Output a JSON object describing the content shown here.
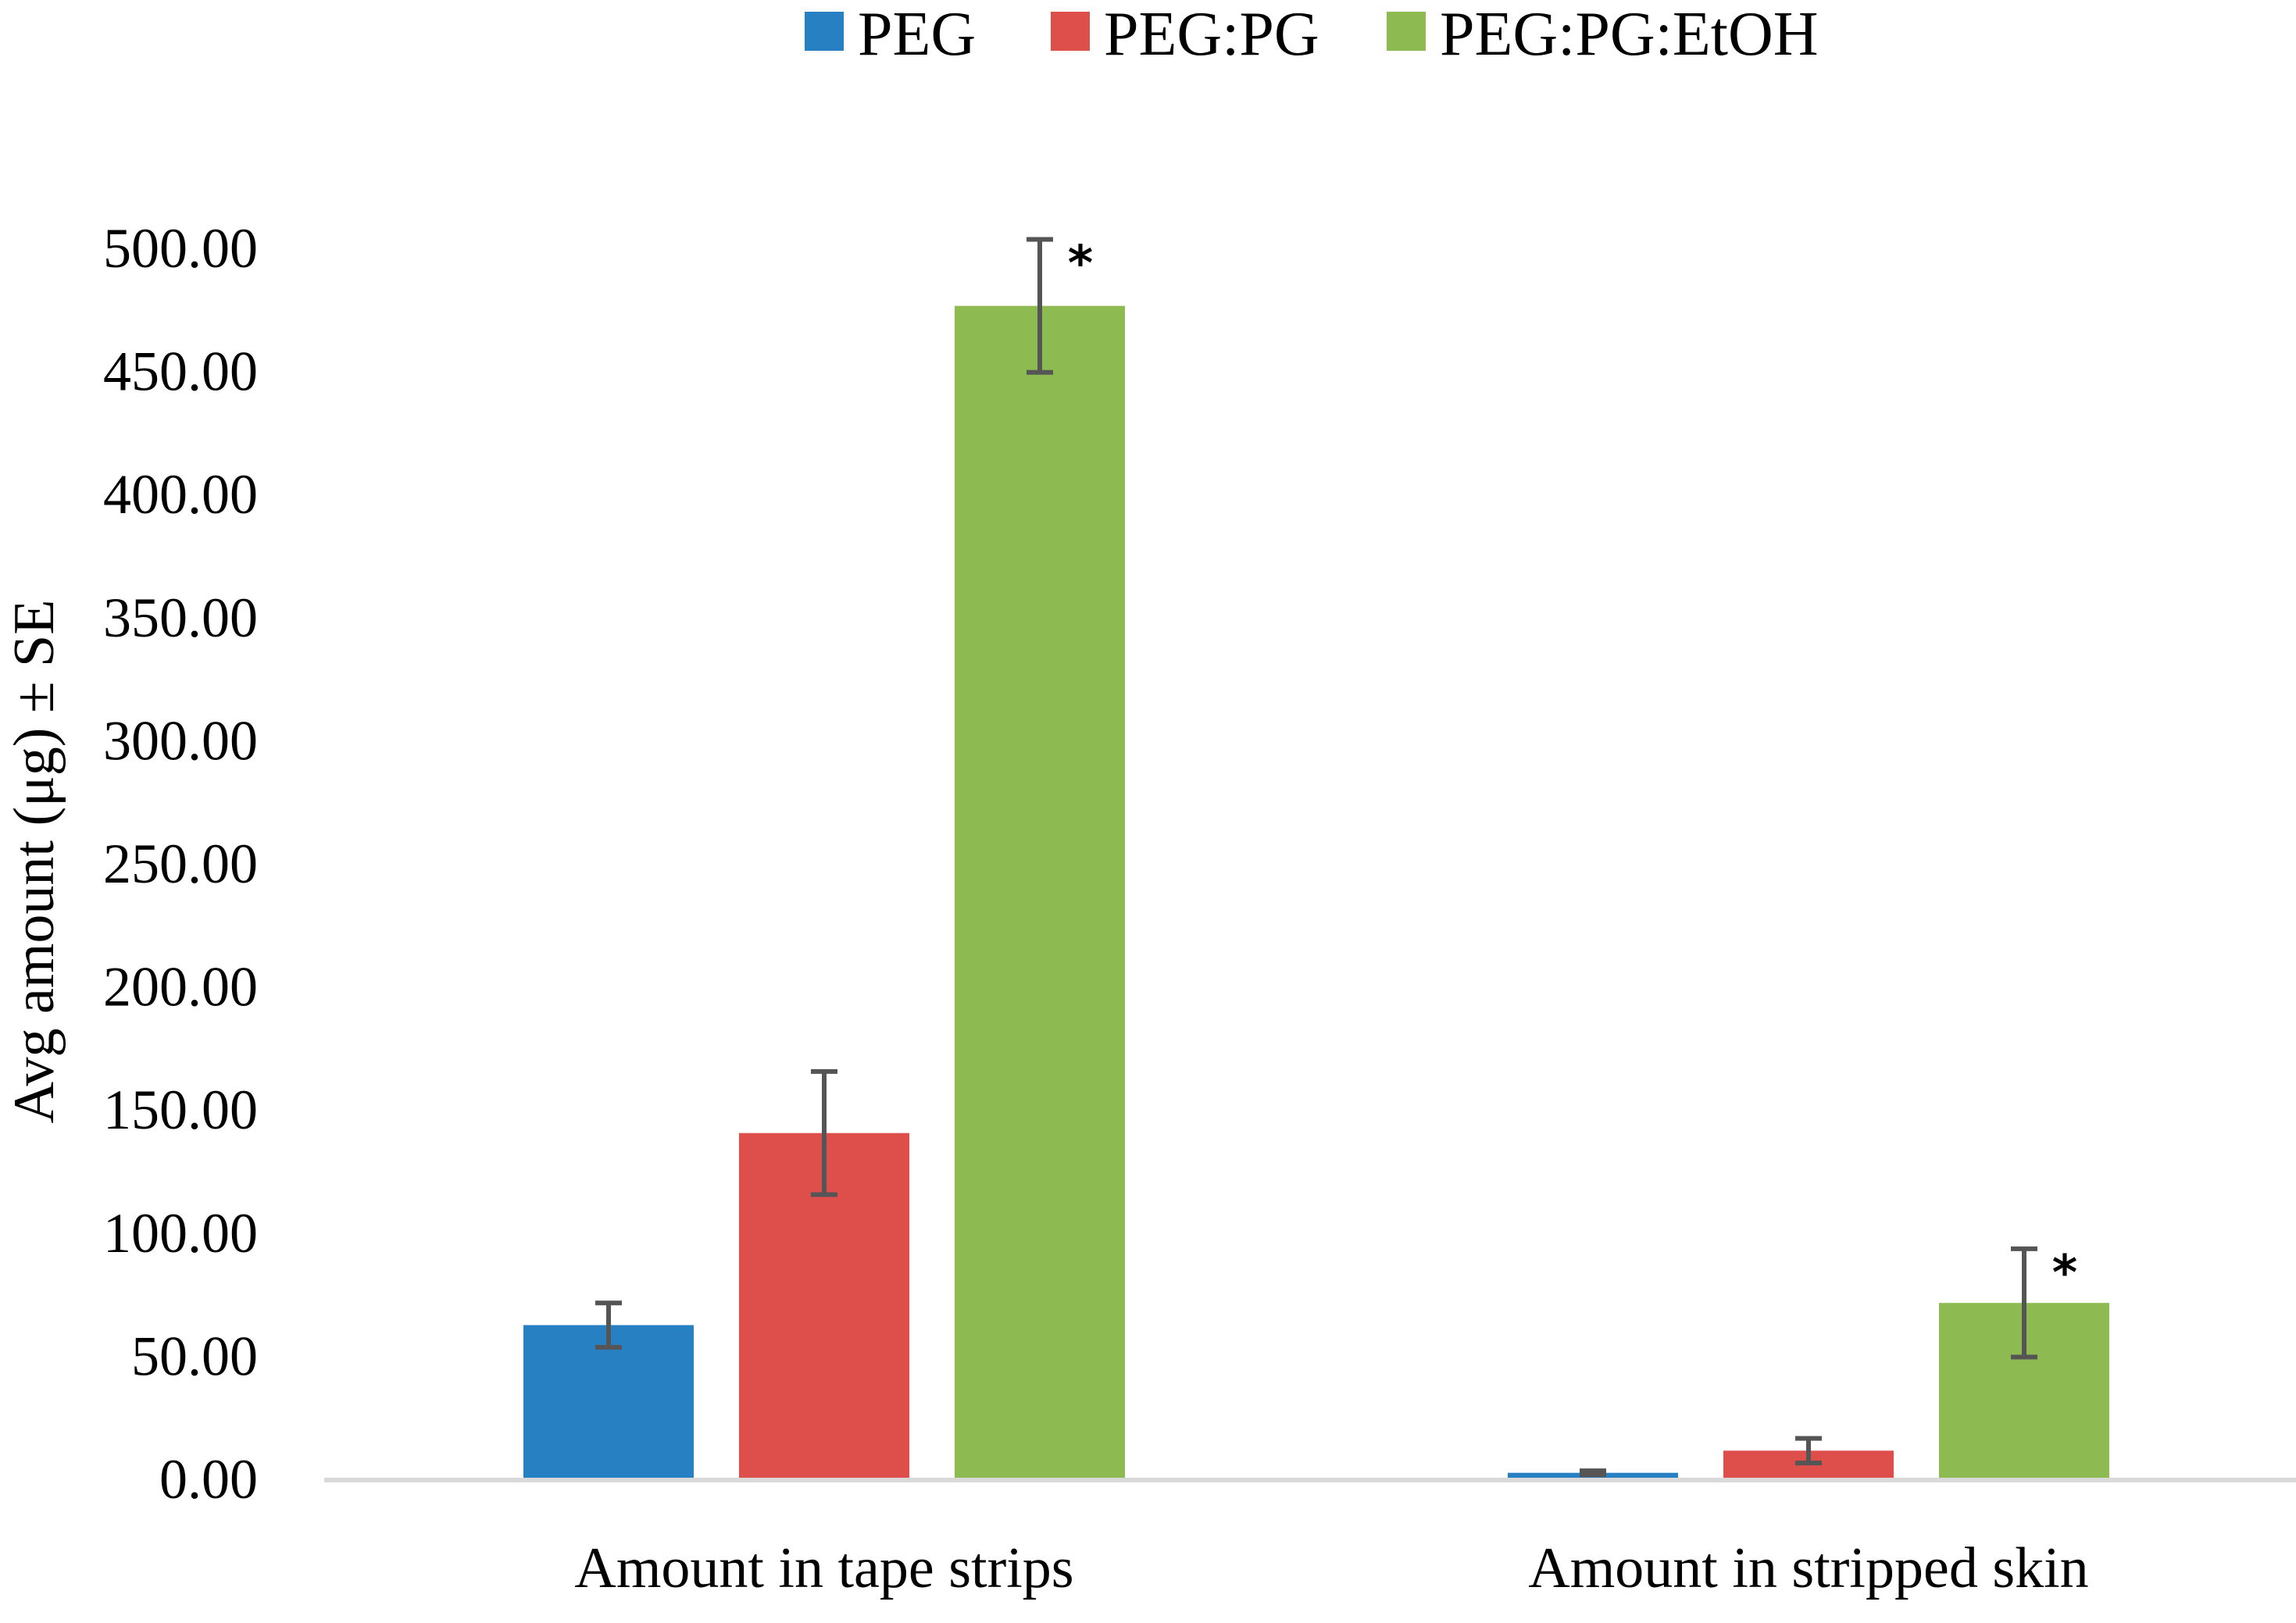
{
  "chart_data": {
    "type": "bar",
    "title": "",
    "xlabel": "",
    "ylabel": "Avg amount (μg) ± SE",
    "ylim": [
      0,
      500
    ],
    "yticks": [
      "0.00",
      "50.00",
      "100.00",
      "150.00",
      "200.00",
      "250.00",
      "300.00",
      "350.00",
      "400.00",
      "450.00",
      "500.00"
    ],
    "categories": [
      "Amount in tape strips",
      "Amount in stripped skin"
    ],
    "series": [
      {
        "name": "PEG",
        "color": "#2680C2",
        "values": [
          62,
          2
        ],
        "errors": [
          9,
          0.8
        ],
        "annotations": [
          "",
          ""
        ]
      },
      {
        "name": "PEG:PG",
        "color": "#DE4F4C",
        "values": [
          140,
          11
        ],
        "errors": [
          25,
          5
        ],
        "annotations": [
          "",
          ""
        ]
      },
      {
        "name": "PEG:PG:EtOH",
        "color": "#8DBB51",
        "values": [
          476,
          71
        ],
        "errors": [
          27,
          22
        ],
        "annotations": [
          "*",
          "*"
        ]
      }
    ],
    "legend_position": "top",
    "grid": false,
    "error_bar_color": "#555555"
  }
}
